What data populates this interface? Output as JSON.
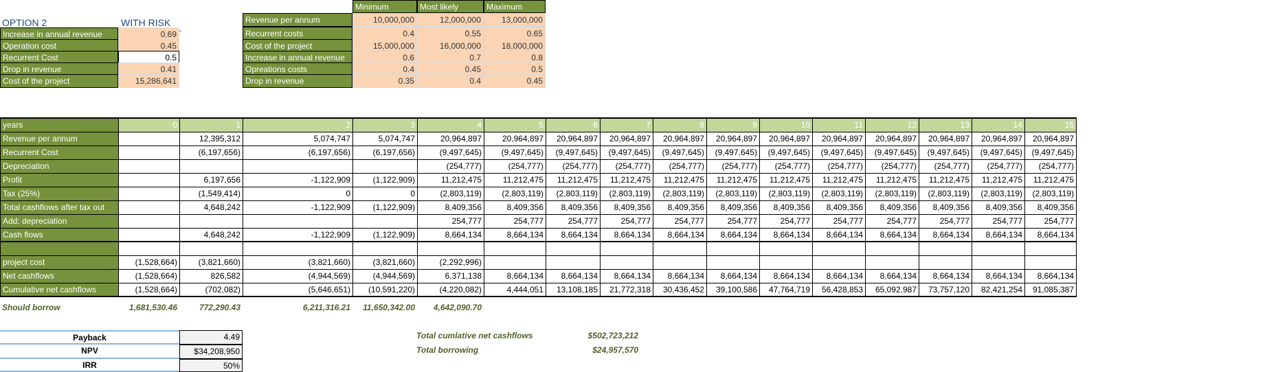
{
  "option": {
    "title": "OPTION 2",
    "subtitle": "WITH RISK",
    "rows": [
      {
        "label": "Increase in annual revenue",
        "value": "0.69"
      },
      {
        "label": "Operation cost",
        "value": "0.45"
      },
      {
        "label": "Recurrent Cost",
        "value": "0.5"
      },
      {
        "label": "Drop in revenue",
        "value": "0.41"
      },
      {
        "label": "Cost of the project",
        "value": "15,286,641"
      }
    ]
  },
  "risk": {
    "headers": [
      "Minimum",
      "Most likely",
      "Maximum"
    ],
    "rows": [
      {
        "label": "Revenue per annum",
        "values": [
          "10,000,000",
          "12,000,000",
          "13,000,000"
        ]
      },
      {
        "label": "Recurrent costs",
        "values": [
          "0.4",
          "0.55",
          "0.65"
        ]
      },
      {
        "label": "Cost of the project",
        "values": [
          "15,000,000",
          "16,000,000",
          "18,000,000"
        ]
      },
      {
        "label": "Increase in annual revenue",
        "values": [
          "0.6",
          "0.7",
          "0.8"
        ]
      },
      {
        "label": "Opreations costs",
        "values": [
          "0.4",
          "0.45",
          "0.5"
        ]
      },
      {
        "label": "Drop in revenue",
        "values": [
          "0.35",
          "0.4",
          "0.45"
        ]
      }
    ]
  },
  "cashflow": {
    "header_label": "years",
    "years": [
      "0",
      "1",
      "2",
      "3",
      "4",
      "5",
      "6",
      "7",
      "8",
      "9",
      "10",
      "11",
      "12",
      "13",
      "14",
      "15"
    ],
    "rows": [
      {
        "label": "Revenue per annum",
        "values": [
          "",
          "12,395,312",
          "5,074,747",
          "5,074,747",
          "20,964,897",
          "20,964,897",
          "20,964,897",
          "20,964,897",
          "20,964,897",
          "20,964,897",
          "20,964,897",
          "20,964,897",
          "20,964,897",
          "20,964,897",
          "20,964,897",
          "20,964,897"
        ]
      },
      {
        "label": "Recurrent Cost",
        "values": [
          "",
          "(6,197,656)",
          "(6,197,656)",
          "(6,197,656)",
          "(9,497,645)",
          "(9,497,645)",
          "(9,497,645)",
          "(9,497,645)",
          "(9,497,645)",
          "(9,497,645)",
          "(9,497,645)",
          "(9,497,645)",
          "(9,497,645)",
          "(9,497,645)",
          "(9,497,645)",
          "(9,497,645)"
        ]
      },
      {
        "label": "Depreciation",
        "values": [
          "",
          "",
          "",
          "",
          "(254,777)",
          "(254,777)",
          "(254,777)",
          "(254,777)",
          "(254,777)",
          "(254,777)",
          "(254,777)",
          "(254,777)",
          "(254,777)",
          "(254,777)",
          "(254,777)",
          "(254,777)"
        ]
      },
      {
        "label": "Profit",
        "values": [
          "",
          "6,197,656",
          "-1,122,909",
          "(1,122,909)",
          "11,212,475",
          "11,212,475",
          "11,212,475",
          "11,212,475",
          "11,212,475",
          "11,212,475",
          "11,212,475",
          "11,212,475",
          "11,212,475",
          "11,212,475",
          "11,212,475",
          "11,212,475"
        ]
      },
      {
        "label": "Tax (25%)",
        "values": [
          "",
          "(1,549,414)",
          "0",
          "0",
          "(2,803,119)",
          "(2,803,119)",
          "(2,803,119)",
          "(2,803,119)",
          "(2,803,119)",
          "(2,803,119)",
          "(2,803,119)",
          "(2,803,119)",
          "(2,803,119)",
          "(2,803,119)",
          "(2,803,119)",
          "(2,803,119)"
        ]
      },
      {
        "label": "Total cashflows after tax out",
        "values": [
          "",
          "4,648,242",
          "-1,122,909",
          "(1,122,909)",
          "8,409,356",
          "8,409,356",
          "8,409,356",
          "8,409,356",
          "8,409,356",
          "8,409,356",
          "8,409,356",
          "8,409,356",
          "8,409,356",
          "8,409,356",
          "8,409,356",
          "8,409,356"
        ]
      },
      {
        "label": "Add: depreciation",
        "values": [
          "",
          "",
          "",
          "",
          "254,777",
          "254,777",
          "254,777",
          "254,777",
          "254,777",
          "254,777",
          "254,777",
          "254,777",
          "254,777",
          "254,777",
          "254,777",
          "254,777"
        ]
      },
      {
        "label": "Cash flows",
        "values": [
          "",
          "4,648,242",
          "-1,122,909",
          "(1,122,909)",
          "8,664,134",
          "8,664,134",
          "8,664,134",
          "8,664,134",
          "8,664,134",
          "8,664,134",
          "8,664,134",
          "8,664,134",
          "8,664,134",
          "8,664,134",
          "8,664,134",
          "8,664,134"
        ]
      },
      {
        "label": "",
        "values": [
          "",
          "",
          "",
          "",
          "",
          "",
          "",
          "",
          "",
          "",
          "",
          "",
          "",
          "",
          "",
          ""
        ]
      },
      {
        "label": "project cost",
        "values": [
          "(1,528,664)",
          "(3,821,660)",
          "(3,821,660)",
          "(3,821,660)",
          "(2,292,996)",
          "",
          "",
          "",
          "",
          "",
          "",
          "",
          "",
          "",
          "",
          ""
        ]
      },
      {
        "label": "Net cashflows",
        "values": [
          "(1,528,664)",
          "826,582",
          "(4,944,569)",
          "(4,944,569)",
          "6,371,138",
          "8,664,134",
          "8,664,134",
          "8,664,134",
          "8,664,134",
          "8,664,134",
          "8,664,134",
          "8,664,134",
          "8,664,134",
          "8,664,134",
          "8,664,134",
          "8,664,134"
        ]
      },
      {
        "label": "Cumulative net cashflows",
        "values": [
          "(1,528,664)",
          "(702,082)",
          "(5,646,651)",
          "(10,591,220)",
          "(4,220,082)",
          "4,444,051",
          "13,108,185",
          "21,772,318",
          "30,436,452",
          "39,100,586",
          "47,764,719",
          "56,428,853",
          "65,092,987",
          "73,757,120",
          "82,421,254",
          "91,085,387"
        ]
      }
    ]
  },
  "borrow": {
    "label": "Should borrow",
    "values": [
      "1,681,530.46",
      "772,290.43",
      "6,211,316.21",
      "11,650,342.00",
      "4,642,090.70"
    ]
  },
  "summary": [
    {
      "label": "Payback",
      "value": "4.49"
    },
    {
      "label": "NPV",
      "value": "$34,208,950"
    },
    {
      "label": "IRR",
      "value": "50%"
    }
  ],
  "totals": [
    {
      "label": "Total cumlative net cashflows",
      "value": "$502,723,212"
    },
    {
      "label": "Total borrowing",
      "value": "$24,957,570"
    }
  ]
}
